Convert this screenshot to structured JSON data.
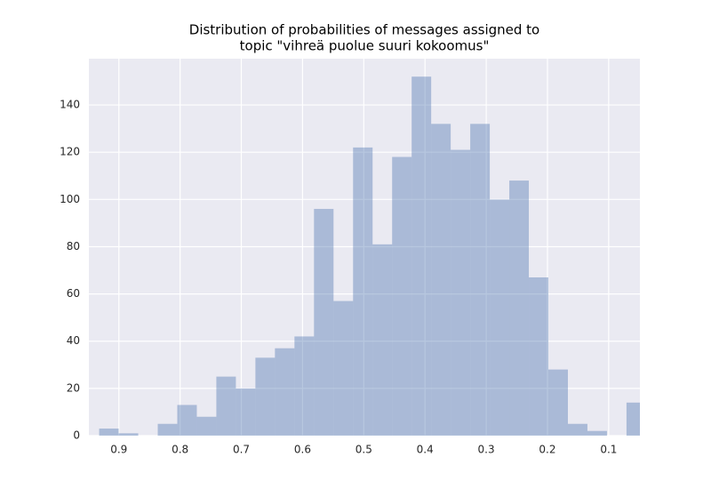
{
  "chart_data": {
    "type": "histogram",
    "title": [
      "Distribution of probabilities of messages assigned to",
      "topic \"vihreä puolue suuri kokoomus\""
    ],
    "bins": [
      0.039,
      0.0709,
      0.1028,
      0.1347,
      0.1666,
      0.1985,
      0.2304,
      0.2623,
      0.2942,
      0.3261,
      0.358,
      0.3899,
      0.4218,
      0.4537,
      0.4856,
      0.5175,
      0.5494,
      0.5813,
      0.6132,
      0.6451,
      0.677,
      0.7089,
      0.7408,
      0.7727,
      0.8046,
      0.8365,
      0.8684,
      0.9003,
      0.9322
    ],
    "values": [
      14,
      0,
      2,
      5,
      28,
      67,
      108,
      100,
      132,
      121,
      132,
      152,
      118,
      81,
      122,
      57,
      96,
      42,
      37,
      33,
      20,
      25,
      8,
      13,
      5,
      0,
      1,
      3
    ],
    "color": "#4c72b0",
    "xlim": [
      0.949,
      0.049
    ],
    "xticks": [
      0.9,
      0.8,
      0.7,
      0.6,
      0.5,
      0.4,
      0.3,
      0.2,
      0.1
    ],
    "ylim": [
      0,
      159.6
    ],
    "yticks": [
      0,
      20,
      40,
      60,
      80,
      100,
      120,
      140
    ],
    "grid": true
  }
}
